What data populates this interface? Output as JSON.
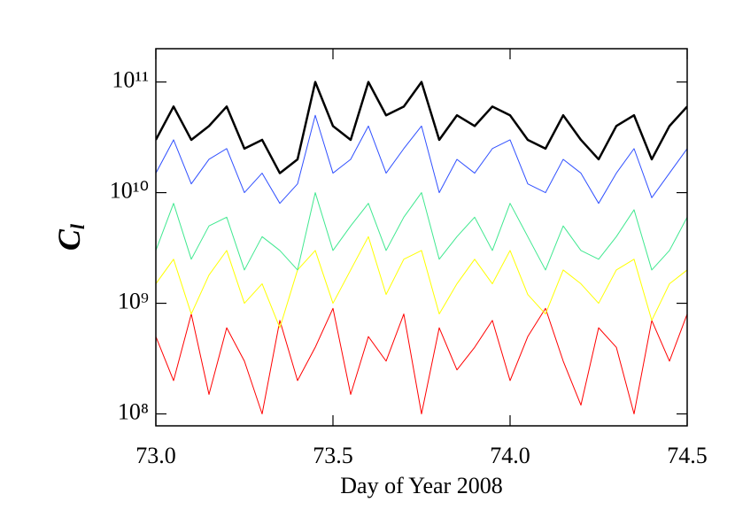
{
  "chart_data": {
    "type": "line",
    "xlabel": "Day of Year 2008",
    "ylabel": "C",
    "ylabel_subscript": "l",
    "log_y": true,
    "x": [
      73.0,
      73.05,
      73.1,
      73.15,
      73.2,
      73.25,
      73.3,
      73.35,
      73.4,
      73.45,
      73.5,
      73.55,
      73.6,
      73.65,
      73.7,
      73.75,
      73.8,
      73.85,
      73.9,
      73.95,
      74.0,
      74.05,
      74.1,
      74.15,
      74.2,
      74.25,
      74.3,
      74.35,
      74.4,
      74.45,
      74.5
    ],
    "series": [
      {
        "color": "#000000",
        "width": 2.5,
        "values": [
          30000000000.0,
          60000000000.0,
          30000000000.0,
          40000000000.0,
          60000000000.0,
          25000000000.0,
          30000000000.0,
          15000000000.0,
          20000000000.0,
          100000000000.0,
          40000000000.0,
          30000000000.0,
          100000000000.0,
          50000000000.0,
          60000000000.0,
          100000000000.0,
          30000000000.0,
          50000000000.0,
          40000000000.0,
          60000000000.0,
          50000000000.0,
          30000000000.0,
          25000000000.0,
          50000000000.0,
          30000000000.0,
          20000000000.0,
          40000000000.0,
          50000000000.0,
          20000000000.0,
          40000000000.0,
          60000000000.0
        ]
      },
      {
        "color": "#3050ff",
        "width": 1,
        "values": [
          15000000000.0,
          30000000000.0,
          12000000000.0,
          20000000000.0,
          25000000000.0,
          10000000000.0,
          15000000000.0,
          8000000000.0,
          12000000000.0,
          50000000000.0,
          15000000000.0,
          20000000000.0,
          40000000000.0,
          15000000000.0,
          25000000000.0,
          40000000000.0,
          10000000000.0,
          20000000000.0,
          15000000000.0,
          25000000000.0,
          30000000000.0,
          12000000000.0,
          10000000000.0,
          20000000000.0,
          15000000000.0,
          8000000000.0,
          15000000000.0,
          25000000000.0,
          9000000000.0,
          15000000000.0,
          25000000000.0
        ]
      },
      {
        "color": "#40e890",
        "width": 1,
        "values": [
          3000000000.0,
          8000000000.0,
          2500000000.0,
          5000000000.0,
          6000000000.0,
          2000000000.0,
          4000000000.0,
          3000000000.0,
          2000000000.0,
          10000000000.0,
          3000000000.0,
          5000000000.0,
          8000000000.0,
          3000000000.0,
          6000000000.0,
          10000000000.0,
          2500000000.0,
          4000000000.0,
          6000000000.0,
          3000000000.0,
          8000000000.0,
          4000000000.0,
          2000000000.0,
          5000000000.0,
          3000000000.0,
          2500000000.0,
          4000000000.0,
          7000000000.0,
          2000000000.0,
          3000000000.0,
          6000000000.0
        ]
      },
      {
        "color": "#ffff00",
        "width": 1,
        "values": [
          1500000000.0,
          2500000000.0,
          800000000.0,
          1800000000.0,
          3000000000.0,
          1000000000.0,
          1500000000.0,
          600000000.0,
          2000000000.0,
          3000000000.0,
          1000000000.0,
          2000000000.0,
          4000000000.0,
          1200000000.0,
          2500000000.0,
          3000000000.0,
          800000000.0,
          1500000000.0,
          2500000000.0,
          1500000000.0,
          3000000000.0,
          1200000000.0,
          800000000.0,
          2000000000.0,
          1500000000.0,
          1000000000.0,
          2000000000.0,
          2500000000.0,
          700000000.0,
          1500000000.0,
          2000000000.0
        ]
      },
      {
        "color": "#ff0000",
        "width": 1,
        "values": [
          500000000.0,
          200000000.0,
          800000000.0,
          150000000.0,
          600000000.0,
          300000000.0,
          100000000.0,
          700000000.0,
          200000000.0,
          400000000.0,
          900000000.0,
          150000000.0,
          500000000.0,
          300000000.0,
          800000000.0,
          100000000.0,
          600000000.0,
          250000000.0,
          400000000.0,
          700000000.0,
          200000000.0,
          500000000.0,
          900000000.0,
          300000000.0,
          120000000.0,
          600000000.0,
          400000000.0,
          100000000.0,
          700000000.0,
          300000000.0,
          800000000.0
        ]
      }
    ],
    "xlim": [
      73.0,
      74.5
    ],
    "xticks": [
      {
        "value": 73.0,
        "label": "73.0"
      },
      73.5,
      {
        "value": 74.0,
        "label": "74.0"
      },
      74.5
    ],
    "ylim": [
      78000000.0,
      200000000000.0
    ],
    "yticks": [
      {
        "value": 100000000.0,
        "label": "10⁸"
      },
      {
        "value": 1000000000.0,
        "label": "10⁹"
      },
      {
        "value": 10000000000.0,
        "label": "10¹⁰"
      },
      {
        "value": 100000000000.0,
        "label": "10¹¹"
      }
    ]
  }
}
